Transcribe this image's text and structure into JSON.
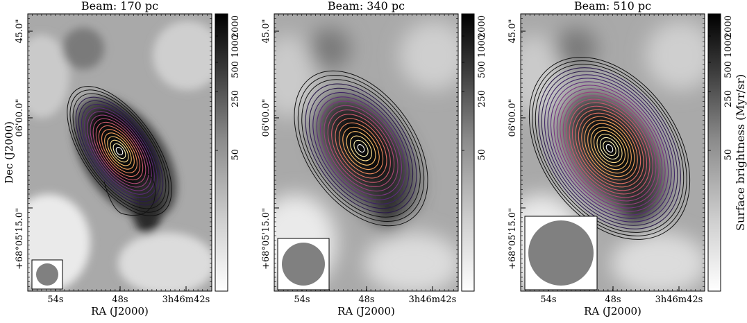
{
  "figure": {
    "cbar_label": "Surface brightness (Myr/sr)"
  },
  "chart_data": [
    {
      "type": "heatmap",
      "title": "Beam: 170 pc",
      "xlabel": "RA (J2000)",
      "ylabel": "Dec (J2000)",
      "x_tick_labels": [
        "54s",
        "48s",
        "3h46m42s"
      ],
      "y_tick_labels": [
        "45.0\"",
        "06'00.0\"",
        "+68°05'15.0\""
      ],
      "colorbar_tick_labels": [
        "50",
        "250",
        "500",
        "1000",
        "2000"
      ],
      "colorbar_label": "",
      "beam_size_pc": 170,
      "image_colormap": "gray_r",
      "contour_colormap": "magma"
    },
    {
      "type": "heatmap",
      "title": "Beam: 340 pc",
      "xlabel": "RA (J2000)",
      "ylabel": "",
      "x_tick_labels": [
        "54s",
        "48s",
        "3h46m42s"
      ],
      "y_tick_labels": [
        "45.0\"",
        "06'00.0\"",
        "+68°05'15.0\""
      ],
      "colorbar_tick_labels": [
        "50",
        "250",
        "500",
        "1000",
        "2000"
      ],
      "colorbar_label": "",
      "beam_size_pc": 340,
      "image_colormap": "gray_r",
      "contour_colormap": "magma"
    },
    {
      "type": "heatmap",
      "title": "Beam: 510 pc",
      "xlabel": "RA (J2000)",
      "ylabel": "",
      "x_tick_labels": [
        "54s",
        "48s",
        "3h46m42s"
      ],
      "y_tick_labels": [
        "45.0\"",
        "06'00.0\"",
        "+68°05'15.0\""
      ],
      "colorbar_tick_labels": [
        "50",
        "250",
        "500",
        "1000",
        "2000"
      ],
      "colorbar_label": "Surface brightness (Myr/sr)",
      "beam_size_pc": 510,
      "image_colormap": "gray_r",
      "contour_colormap": "magma"
    }
  ]
}
